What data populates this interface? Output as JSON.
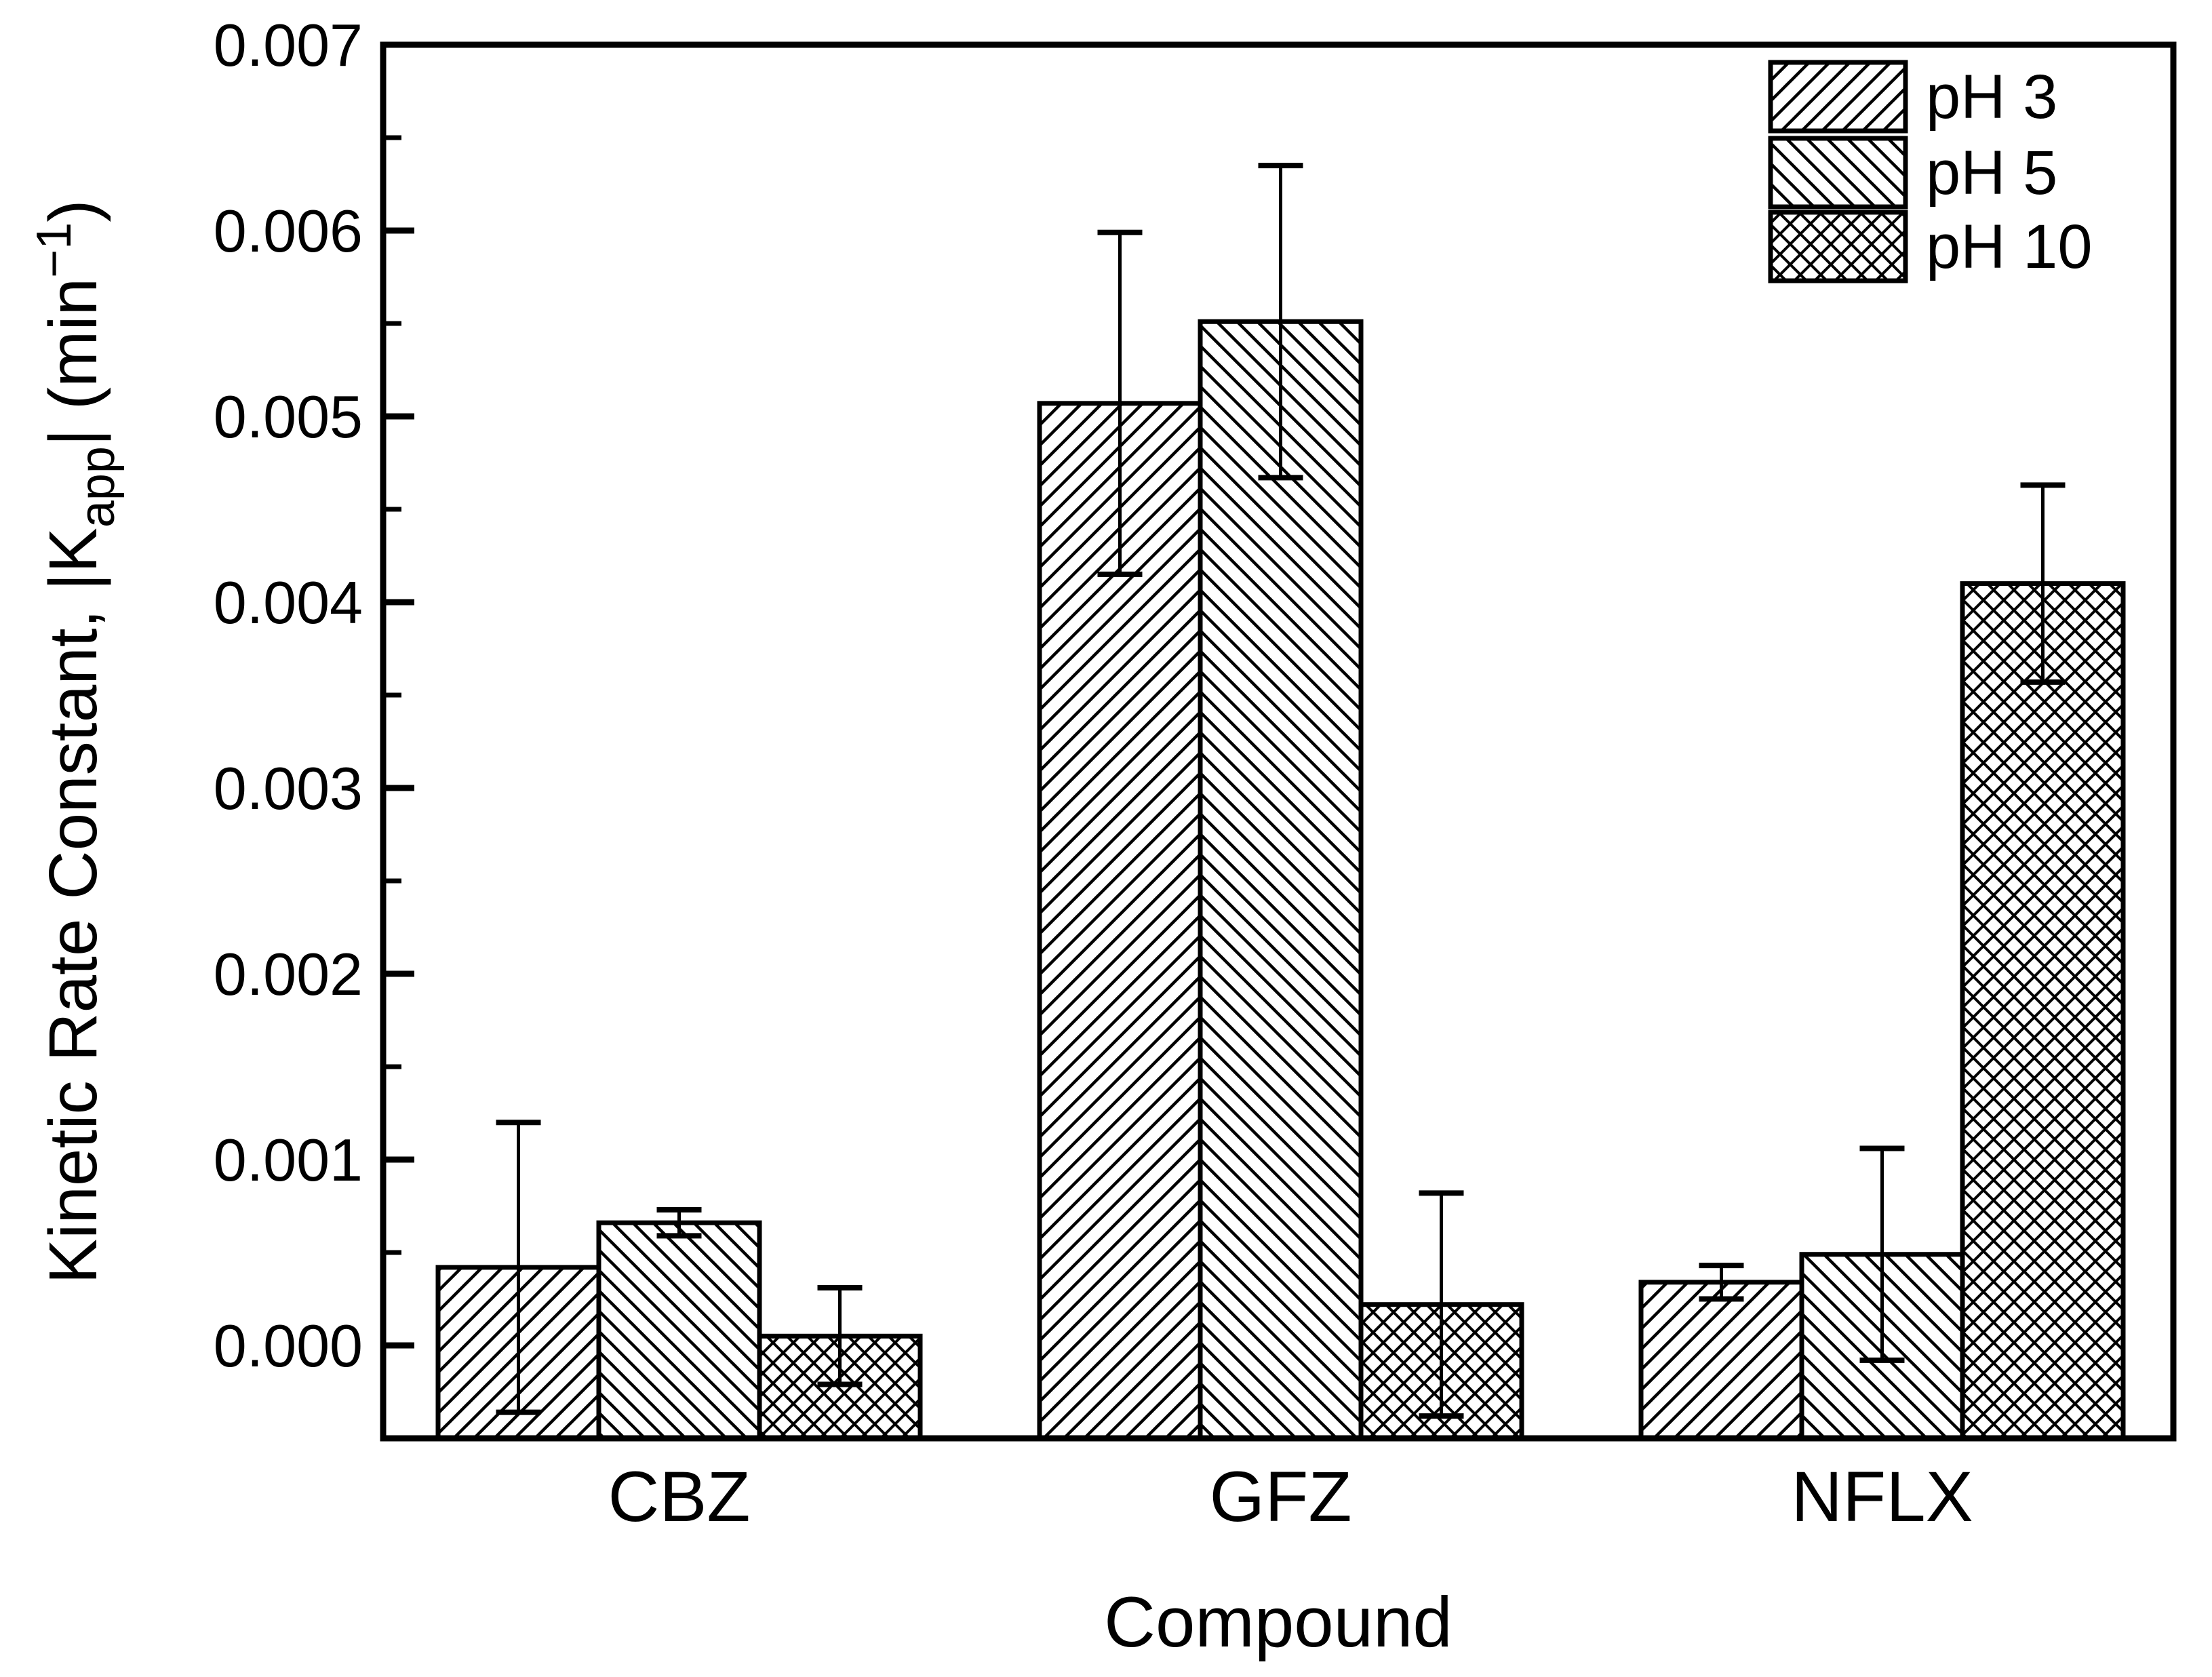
{
  "chart_data": {
    "type": "bar",
    "title": "",
    "xlabel": "Compound",
    "ylabel": "Kinetic Rate Constant, |Kapp| (min-1)",
    "ylabel_parts": {
      "main": "Kinetic Rate Constant, |K",
      "sub": "app",
      "mid": "| (min",
      "sup": "−1",
      "end": ")"
    },
    "categories": [
      "CBZ",
      "GFZ",
      "NFLX"
    ],
    "series": [
      {
        "name": "pH 3",
        "hatch": "forward-diagonal",
        "values": [
          0.00042,
          0.00507,
          0.00034
        ],
        "errors": [
          0.00078,
          0.00092,
          9e-05
        ]
      },
      {
        "name": "pH 5",
        "hatch": "backward-diagonal",
        "values": [
          0.00066,
          0.00551,
          0.00049
        ],
        "errors": [
          7e-05,
          0.00084,
          0.00057
        ]
      },
      {
        "name": "pH 10",
        "hatch": "cross-diagonal",
        "values": [
          5e-05,
          0.00022,
          0.0041
        ],
        "errors": [
          0.00026,
          0.0006,
          0.00053
        ]
      }
    ],
    "ylim": [
      -0.0005,
      0.007
    ],
    "yticks": [
      {
        "value": 0.0,
        "label": "0.000"
      },
      {
        "value": 0.001,
        "label": "0.001"
      },
      {
        "value": 0.002,
        "label": "0.002"
      },
      {
        "value": 0.003,
        "label": "0.003"
      },
      {
        "value": 0.004,
        "label": "0.004"
      },
      {
        "value": 0.005,
        "label": "0.005"
      },
      {
        "value": 0.006,
        "label": "0.006"
      },
      {
        "value": 0.007,
        "label": "0.007"
      }
    ],
    "minor_tick_step": 0.0005,
    "grid": false,
    "legend_position": "top-right",
    "error_bars": true,
    "colors": {
      "foreground": "#000000",
      "background": "#ffffff"
    }
  }
}
